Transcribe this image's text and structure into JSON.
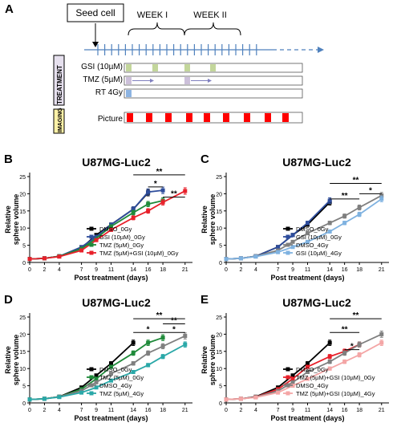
{
  "figure": {
    "panel_a": {
      "letter": "A",
      "seed_label": "Seed cell",
      "week_labels": [
        "WEEK I",
        "WEEK II"
      ],
      "treatment_label": "TREATMENT",
      "imaging_label": "IMAGING",
      "rows": [
        {
          "label": "GSI (10µM)",
          "fill": "#c3d69b"
        },
        {
          "label": "TMZ (5µM)",
          "fill": "#ccc0da"
        },
        {
          "label": "RT 4Gy",
          "fill": "#8db4e2"
        }
      ],
      "picture_label": "Picture",
      "colors": {
        "timeline": "#4f81bd",
        "treatment_box": "#d6cfe4",
        "imaging_box": "#fff2a8",
        "picture": "#ff0000"
      }
    },
    "panels": [
      {
        "letter": "B",
        "title": "U87MG-Luc2"
      },
      {
        "letter": "C",
        "title": "U87MG-Luc2"
      },
      {
        "letter": "D",
        "title": "U87MG-Luc2"
      },
      {
        "letter": "E",
        "title": "U87MG-Luc2"
      }
    ]
  },
  "chart_data": [
    {
      "type": "line",
      "title": "U87MG-Luc2",
      "xlabel": "Post treatment (days)",
      "ylabel": "Relative sphere volume",
      "x": [
        0,
        2,
        4,
        7,
        9,
        11,
        14,
        16,
        18,
        21
      ],
      "xticks": [
        "0",
        "2",
        "4",
        "7",
        "9",
        "11",
        "14",
        "16",
        "18",
        "21"
      ],
      "ylim": [
        0,
        25
      ],
      "yticks": [
        "0",
        "5",
        "10",
        "15",
        "20",
        "25"
      ],
      "legend_position": "bottom-right",
      "series": [
        {
          "name": "DMSO_0Gy",
          "color": "#000000",
          "values": [
            1,
            1.2,
            1.8,
            4.2,
            8,
            11,
            15.5,
            20.3,
            null,
            null
          ]
        },
        {
          "name": "GSI (10µM)_0Gy",
          "color": "#2e4d9c",
          "values": [
            1,
            1.2,
            1.8,
            4.5,
            7.5,
            11,
            15.5,
            20.5,
            21,
            null
          ]
        },
        {
          "name": "TMZ (5µM)_0Gy",
          "color": "#1f8a3a",
          "values": [
            1,
            1.2,
            1.8,
            4,
            7,
            10.5,
            14.5,
            17,
            18,
            null
          ]
        },
        {
          "name": "TMZ (5µM)+GSI (10µM)_0Gy",
          "color": "#e8202a",
          "values": [
            1,
            1.2,
            1.7,
            3.5,
            6.5,
            9.5,
            13,
            15,
            17.5,
            20.8
          ]
        }
      ],
      "annotations": [
        "**",
        "*",
        "**"
      ]
    },
    {
      "type": "line",
      "title": "U87MG-Luc2",
      "xlabel": "Post treatment (days)",
      "ylabel": "Relative sphere volume",
      "x": [
        0,
        2,
        4,
        7,
        9,
        11,
        14,
        16,
        18,
        21
      ],
      "xticks": [
        "0",
        "2",
        "4",
        "7",
        "9",
        "11",
        "14",
        "16",
        "18",
        "21"
      ],
      "ylim": [
        0,
        25
      ],
      "yticks": [
        "0",
        "5",
        "10",
        "15",
        "20",
        "25"
      ],
      "legend_position": "bottom-right",
      "series": [
        {
          "name": "DMSO_0Gy",
          "color": "#000000",
          "values": [
            1,
            1.2,
            1.8,
            4.5,
            8,
            11,
            17.5,
            null,
            null,
            null
          ]
        },
        {
          "name": "GSI (10µM)_0Gy",
          "color": "#2e4d9c",
          "values": [
            1,
            1.2,
            1.8,
            4.5,
            8,
            11.5,
            18,
            null,
            null,
            null
          ]
        },
        {
          "name": "DMSO_4Gy",
          "color": "#7f7f7f",
          "values": [
            1,
            1.2,
            1.8,
            3.5,
            6,
            8.5,
            11.5,
            13.5,
            16,
            19.5
          ]
        },
        {
          "name": "GSI (10µM)_4Gy",
          "color": "#7fb2e0",
          "values": [
            1,
            1.2,
            1.7,
            3,
            4.5,
            6,
            9,
            11.5,
            14,
            18.5
          ]
        }
      ],
      "annotations": [
        "**",
        "**",
        "*"
      ]
    },
    {
      "type": "line",
      "title": "U87MG-Luc2",
      "xlabel": "Post treatment (days)",
      "ylabel": "Relative sphere volume",
      "x": [
        0,
        2,
        4,
        7,
        9,
        11,
        14,
        16,
        18,
        21
      ],
      "xticks": [
        "0",
        "2",
        "4",
        "7",
        "9",
        "11",
        "14",
        "16",
        "18",
        "21"
      ],
      "ylim": [
        0,
        25
      ],
      "yticks": [
        "0",
        "5",
        "10",
        "15",
        "20",
        "25"
      ],
      "legend_position": "bottom-right",
      "series": [
        {
          "name": "DMSO_0Gy",
          "color": "#000000",
          "values": [
            1,
            1.2,
            1.8,
            4.5,
            8,
            11.5,
            17.5,
            null,
            null,
            null
          ]
        },
        {
          "name": "TMZ (5µM)_0Gy",
          "color": "#1f8a3a",
          "values": [
            1,
            1.2,
            1.8,
            4,
            7,
            10.5,
            14.5,
            17.5,
            19,
            null
          ]
        },
        {
          "name": "DMSO_4Gy",
          "color": "#7f7f7f",
          "values": [
            1,
            1.2,
            1.8,
            3.5,
            6,
            8.5,
            11.5,
            14.5,
            16.5,
            19.5
          ]
        },
        {
          "name": "TMZ (5µM)_4Gy",
          "color": "#2aa8a8",
          "values": [
            1,
            1.2,
            1.7,
            3,
            4.5,
            6.5,
            9,
            11,
            13.5,
            17
          ]
        }
      ],
      "annotations": [
        "*",
        "**",
        "**",
        "*"
      ]
    },
    {
      "type": "line",
      "title": "U87MG-Luc2",
      "xlabel": "Post treatment (days)",
      "ylabel": "Relative sphere volume",
      "x": [
        0,
        2,
        4,
        7,
        9,
        11,
        14,
        16,
        18,
        21
      ],
      "xticks": [
        "0",
        "2",
        "4",
        "7",
        "9",
        "11",
        "14",
        "16",
        "18",
        "21"
      ],
      "ylim": [
        0,
        25
      ],
      "yticks": [
        "0",
        "5",
        "10",
        "15",
        "20",
        "25"
      ],
      "legend_position": "bottom-right",
      "series": [
        {
          "name": "DMSO_0Gy",
          "color": "#000000",
          "values": [
            1,
            1.2,
            1.8,
            4.5,
            8,
            11.5,
            17.5,
            null,
            null,
            null
          ]
        },
        {
          "name": "TMZ (5µM)+GSI (10µM)_0Gy",
          "color": "#e8202a",
          "values": [
            1,
            1.2,
            1.7,
            4,
            7,
            10.5,
            13.5,
            15,
            17,
            null
          ]
        },
        {
          "name": "DMSO_4Gy",
          "color": "#7f7f7f",
          "values": [
            1,
            1.2,
            1.7,
            3.5,
            6,
            9,
            12,
            14.5,
            17,
            20
          ]
        },
        {
          "name": "TMZ (5µM)+GSI (10µM)_4Gy",
          "color": "#f4a6a6",
          "values": [
            1,
            1.2,
            1.6,
            3,
            5,
            7,
            10,
            12,
            14,
            17.5
          ]
        }
      ],
      "annotations": [
        "**",
        "**",
        "*"
      ]
    }
  ]
}
